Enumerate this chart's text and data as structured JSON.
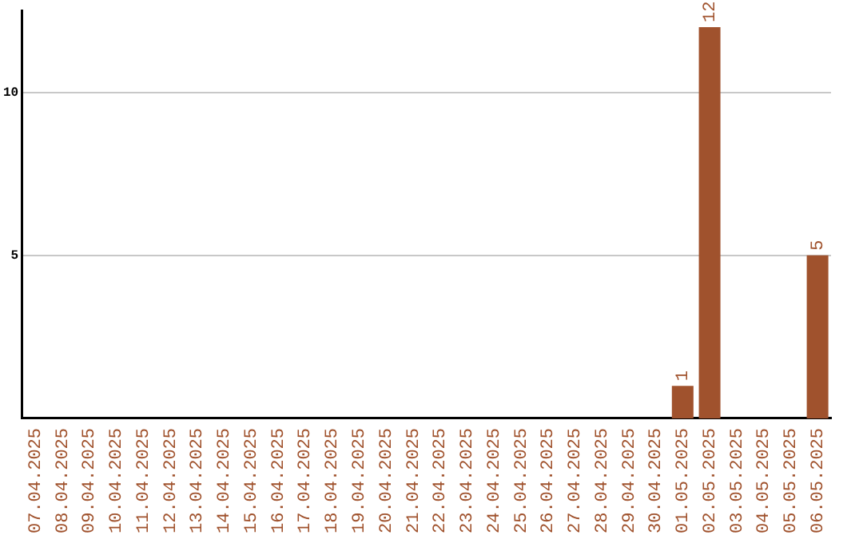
{
  "chart_data": {
    "type": "bar",
    "categories": [
      "07.04.2025",
      "08.04.2025",
      "09.04.2025",
      "10.04.2025",
      "11.04.2025",
      "12.04.2025",
      "13.04.2025",
      "14.04.2025",
      "15.04.2025",
      "16.04.2025",
      "17.04.2025",
      "18.04.2025",
      "19.04.2025",
      "20.04.2025",
      "21.04.2025",
      "22.04.2025",
      "23.04.2025",
      "24.04.2025",
      "25.04.2025",
      "26.04.2025",
      "27.04.2025",
      "28.04.2025",
      "29.04.2025",
      "30.04.2025",
      "01.05.2025",
      "02.05.2025",
      "03.05.2025",
      "04.05.2025",
      "05.05.2025",
      "06.05.2025"
    ],
    "values": [
      0,
      0,
      0,
      0,
      0,
      0,
      0,
      0,
      0,
      0,
      0,
      0,
      0,
      0,
      0,
      0,
      0,
      0,
      0,
      0,
      0,
      0,
      0,
      0,
      1,
      12,
      0,
      0,
      0,
      5
    ],
    "value_labels": [
      null,
      null,
      null,
      null,
      null,
      null,
      null,
      null,
      null,
      null,
      null,
      null,
      null,
      null,
      null,
      null,
      null,
      null,
      null,
      null,
      null,
      null,
      null,
      null,
      "1",
      "12",
      null,
      null,
      null,
      "5"
    ],
    "color": "#a0522d",
    "ylim": [
      0,
      12.5
    ],
    "yticks": [
      5,
      10
    ],
    "grid": "y"
  }
}
